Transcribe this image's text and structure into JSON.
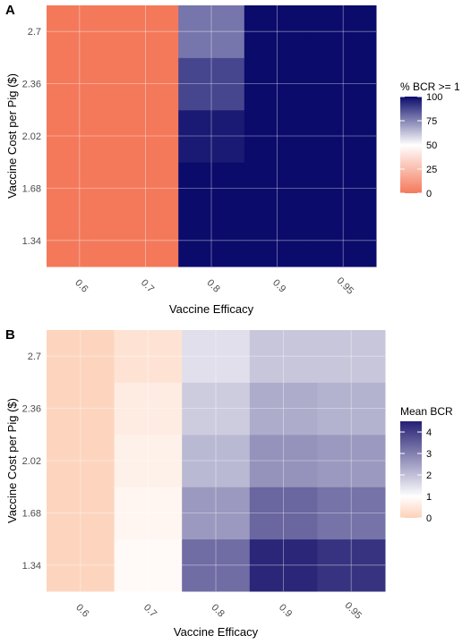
{
  "chart_data": [
    {
      "type": "heatmap",
      "panel_label": "A",
      "xlabel": "Vaccine Efficacy",
      "ylabel": "Vaccine Cost per Pig ($)",
      "x_categories": [
        "0.6",
        "0.7",
        "0.8",
        "0.9",
        "0.95"
      ],
      "y_categories": [
        "1.34",
        "1.68",
        "2.02",
        "2.36",
        "2.7"
      ],
      "values": [
        [
          0,
          0,
          100,
          100,
          100
        ],
        [
          0,
          0,
          100,
          100,
          100
        ],
        [
          0,
          0,
          97,
          100,
          100
        ],
        [
          0,
          0,
          88,
          100,
          100
        ],
        [
          0,
          0,
          78,
          100,
          100
        ]
      ],
      "legend": {
        "title": "% BCR >= 1",
        "ticks": [
          "0",
          "25",
          "50",
          "75",
          "100"
        ],
        "tick_values": [
          0,
          25,
          50,
          75,
          100
        ],
        "range": [
          0,
          100
        ],
        "low_color": "#f4795b",
        "mid_color": "#ffffff",
        "high_color": "#0b0b6b",
        "midpoint": 50
      },
      "grid": true
    },
    {
      "type": "heatmap",
      "panel_label": "B",
      "xlabel": "Vaccine Efficacy",
      "ylabel": "Vaccine Cost per Pig ($)",
      "x_categories": [
        "0.6",
        "0.7",
        "0.8",
        "0.9",
        "0.95"
      ],
      "y_categories": [
        "1.34",
        "1.68",
        "2.02",
        "2.36",
        "2.7"
      ],
      "values": [
        [
          0.1,
          0.9,
          3.3,
          4.4,
          4.2
        ],
        [
          0.1,
          0.8,
          2.6,
          3.4,
          3.2
        ],
        [
          0.1,
          0.7,
          2.1,
          2.7,
          2.6
        ],
        [
          0.1,
          0.6,
          1.8,
          2.3,
          2.2
        ],
        [
          0.1,
          0.4,
          1.5,
          1.9,
          1.9
        ]
      ],
      "legend": {
        "title": "Mean BCR",
        "ticks": [
          "0",
          "1",
          "2",
          "3",
          "4"
        ],
        "tick_values": [
          0,
          1,
          2,
          3,
          4
        ],
        "range": [
          0,
          4.5
        ],
        "low_color": "#fdd0b8",
        "mid_color": "#ffffff",
        "high_color": "#252074",
        "midpoint": 1
      },
      "grid": true
    }
  ]
}
